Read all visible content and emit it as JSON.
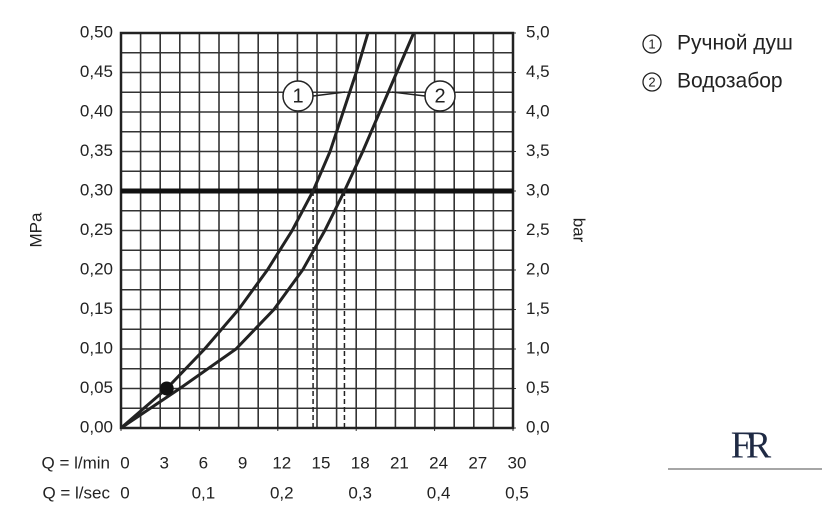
{
  "chart_data": {
    "type": "line",
    "xlabel": "Q = l/min",
    "x2label": "Q = l/sec",
    "ylabel": "MPa",
    "y2label": "bar",
    "xlim": [
      0,
      30
    ],
    "xticks": [
      0,
      3,
      6,
      9,
      12,
      15,
      18,
      21,
      24,
      27,
      30
    ],
    "x2lim": [
      0,
      0.5
    ],
    "x2ticks": [
      0,
      {
        "value": 0.1,
        "label": "0,1"
      },
      {
        "value": 0.2,
        "label": "0,2"
      },
      {
        "value": 0.3,
        "label": "0,3"
      },
      {
        "value": 0.4,
        "label": "0,4"
      },
      {
        "value": 0.5,
        "label": "0,5"
      }
    ],
    "ylim": [
      0,
      0.5
    ],
    "yticks": [
      {
        "value": 0,
        "label": "0,00"
      },
      {
        "value": 0.05,
        "label": "0,05"
      },
      {
        "value": 0.1,
        "label": "0,10"
      },
      {
        "value": 0.15,
        "label": "0,15"
      },
      {
        "value": 0.2,
        "label": "0,20"
      },
      {
        "value": 0.25,
        "label": "0,25"
      },
      {
        "value": 0.3,
        "label": "0,30"
      },
      {
        "value": 0.35,
        "label": "0,35"
      },
      {
        "value": 0.4,
        "label": "0,40"
      },
      {
        "value": 0.45,
        "label": "0,45"
      },
      {
        "value": 0.5,
        "label": "0,50"
      }
    ],
    "y2lim": [
      0,
      5
    ],
    "y2ticks": [
      {
        "value": 0,
        "label": "0,0"
      },
      {
        "value": 0.5,
        "label": "0,5"
      },
      {
        "value": 1,
        "label": "1,0"
      },
      {
        "value": 1.5,
        "label": "1,5"
      },
      {
        "value": 2,
        "label": "2,0"
      },
      {
        "value": 2.5,
        "label": "2,5"
      },
      {
        "value": 3,
        "label": "3,0"
      },
      {
        "value": 3.5,
        "label": "3,5"
      },
      {
        "value": 4,
        "label": "4,0"
      },
      {
        "value": 4.5,
        "label": "4,5"
      },
      {
        "value": 5,
        "label": "5,0"
      }
    ],
    "grid": true,
    "reference_line": 0.3,
    "highlight": {
      "x": 3.5,
      "y": 0.05
    },
    "series": [
      {
        "name": "Ручной душ",
        "label": "1",
        "color": "#222222",
        "x": [
          0,
          3.5,
          6.4,
          9.0,
          11.2,
          13.1,
          14.7,
          16.0,
          17.0,
          18.0,
          18.9
        ],
        "values": [
          0,
          0.05,
          0.1,
          0.15,
          0.2,
          0.25,
          0.3,
          0.35,
          0.4,
          0.45,
          0.5
        ]
      },
      {
        "name": "Водозабор",
        "label": "2",
        "color": "#222222",
        "x": [
          0,
          4.5,
          8.8,
          11.7,
          13.9,
          15.6,
          17.1,
          18.5,
          19.8,
          21.1,
          22.4
        ],
        "values": [
          0,
          0.05,
          0.1,
          0.15,
          0.2,
          0.25,
          0.3,
          0.35,
          0.4,
          0.45,
          0.5
        ]
      }
    ],
    "logo": "FR"
  }
}
